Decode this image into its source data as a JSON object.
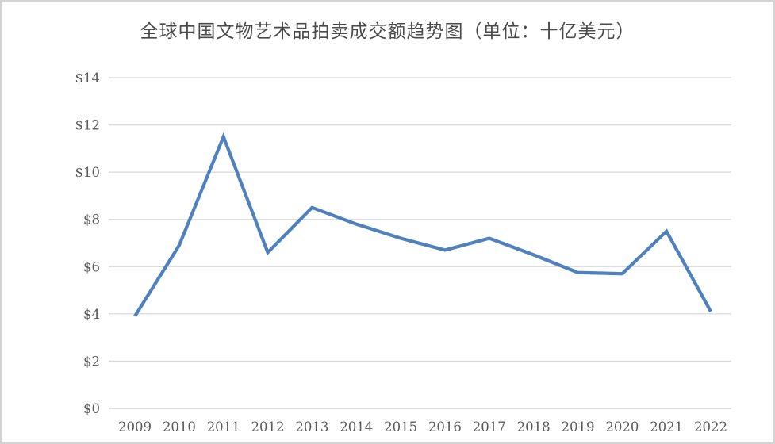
{
  "window": {
    "background": "#ffffff",
    "border_color": "#d4d4d4"
  },
  "chart_data": {
    "type": "line",
    "title": "全球中国文物艺术品拍卖成交额趋势图（单位：十亿美元）",
    "categories": [
      "2009",
      "2010",
      "2011",
      "2012",
      "2013",
      "2014",
      "2015",
      "2016",
      "2017",
      "2018",
      "2019",
      "2020",
      "2021",
      "2022"
    ],
    "values": [
      3.9,
      6.9,
      11.5,
      6.6,
      8.5,
      7.8,
      7.2,
      6.7,
      7.2,
      6.5,
      5.75,
      5.7,
      7.5,
      4.1
    ],
    "xlabel": "",
    "ylabel": "",
    "ylim": [
      0,
      14
    ],
    "y_tick_values": [
      0,
      2,
      4,
      6,
      8,
      10,
      12,
      14
    ],
    "y_tick_labels": [
      "$0",
      "$2",
      "$4",
      "$6",
      "$8",
      "$10",
      "$12",
      "$14"
    ],
    "grid": true,
    "legend_position": "none",
    "line_color": "#4F81BD",
    "gridline_color": "#D9D9D9",
    "axis_line_color": "#D3D3D3",
    "tick_label_color": "#595959",
    "title_color": "#4A4A4A"
  }
}
